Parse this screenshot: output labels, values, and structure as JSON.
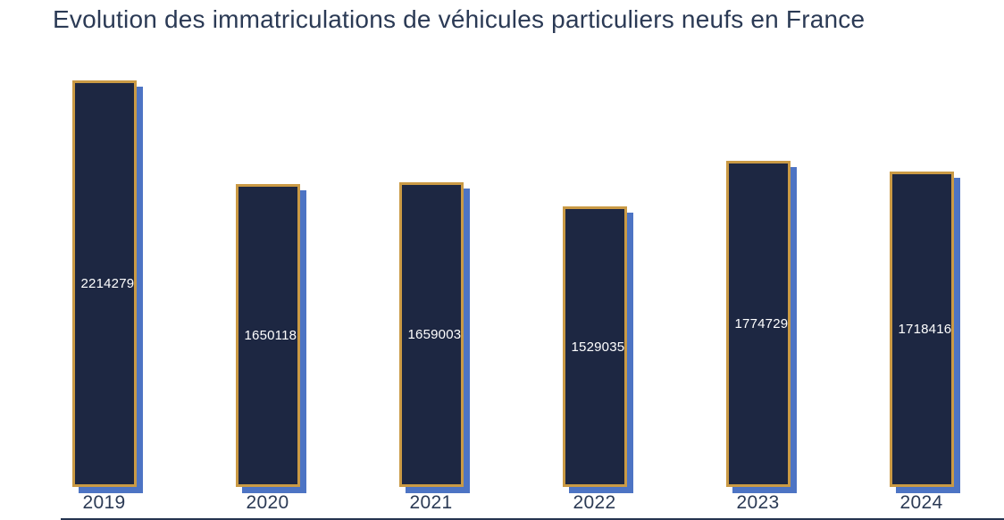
{
  "title": "Evolution des immatriculations de véhicules particuliers neufs en France",
  "chart_data": {
    "type": "bar",
    "title": "Evolution des immatriculations de véhicules particuliers neufs en France",
    "categories": [
      "2019",
      "2020",
      "2021",
      "2022",
      "2023",
      "2024"
    ],
    "values": [
      2214279,
      1650118,
      1659003,
      1529035,
      1774729,
      1718416
    ],
    "value_labels": [
      "2214279",
      "1650118",
      "1659003",
      "1529035",
      "1774729",
      "1718416"
    ],
    "xlabel": "",
    "ylabel": "",
    "ylim": [
      0,
      2214279
    ],
    "grid": false,
    "legend_position": "none",
    "value_label_position": "inside-center-left",
    "colors": {
      "bar_fill": "#1d2742",
      "bar_border": "#ca9a45",
      "bar_shadow": "#4d74c4",
      "value_label_text": "#ffffff",
      "axis_text": "#2b3a55",
      "title_text": "#2b3a55",
      "baseline": "#253450",
      "background": "#ffffff"
    }
  }
}
